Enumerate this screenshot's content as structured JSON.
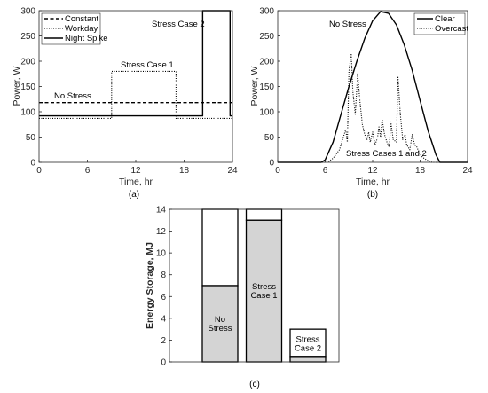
{
  "chart_data": [
    {
      "type": "line",
      "panel_caption": "(a)",
      "xlabel": "Time, hr",
      "ylabel": "Power, W",
      "xlim": [
        0,
        24
      ],
      "ylim": [
        0,
        300
      ],
      "xticks": [
        "0",
        "6",
        "12",
        "18",
        "24"
      ],
      "yticks": [
        "0",
        "50",
        "100",
        "150",
        "200",
        "250",
        "300"
      ],
      "legend": {
        "position": "top-left",
        "entries": [
          "Constant",
          "Workday",
          "Night Spike"
        ]
      },
      "annotations": [
        "Stress Case 2",
        "Stress Case 1",
        "No Stress"
      ],
      "series": [
        {
          "name": "Constant",
          "style": "dashed",
          "x": [
            0,
            24
          ],
          "y": [
            118,
            118
          ]
        },
        {
          "name": "Workday",
          "style": "dotted",
          "x": [
            0,
            9,
            9,
            17,
            17,
            24
          ],
          "y": [
            87,
            87,
            180,
            180,
            87,
            87
          ]
        },
        {
          "name": "Night Spike",
          "style": "solid",
          "x": [
            0,
            20.3,
            20.3,
            23.7,
            23.7,
            24
          ],
          "y": [
            92,
            92,
            300,
            300,
            92,
            92
          ]
        }
      ]
    },
    {
      "type": "line",
      "panel_caption": "(b)",
      "xlabel": "Time, hr",
      "ylabel": "Power, W",
      "xlim": [
        0,
        24
      ],
      "ylim": [
        0,
        300
      ],
      "xticks": [
        "0",
        "6",
        "12",
        "18",
        "24"
      ],
      "yticks": [
        "0",
        "50",
        "100",
        "150",
        "200",
        "250",
        "300"
      ],
      "legend": {
        "position": "top-right",
        "entries": [
          "Clear",
          "Overcast"
        ]
      },
      "annotations": [
        "No Stress",
        "Stress Cases 1 and 2"
      ],
      "series": [
        {
          "name": "Clear",
          "style": "solid",
          "x": [
            0,
            5.5,
            6,
            7,
            8,
            9,
            10,
            11,
            12,
            13,
            14,
            15,
            16,
            17,
            18,
            19,
            20,
            20.5,
            21,
            24
          ],
          "y": [
            0,
            0,
            5,
            40,
            95,
            150,
            200,
            245,
            280,
            298,
            295,
            272,
            232,
            182,
            122,
            63,
            15,
            0,
            0,
            0
          ]
        },
        {
          "name": "Overcast",
          "style": "dotted",
          "x": [
            0,
            6.3,
            7,
            7.8,
            8.2,
            8.6,
            8.8,
            9.0,
            9.3,
            9.5,
            9.8,
            10.1,
            10.4,
            10.7,
            11.0,
            11.3,
            11.5,
            11.7,
            12.0,
            12.3,
            12.6,
            12.8,
            13.0,
            13.2,
            13.5,
            13.8,
            14.1,
            14.3,
            14.6,
            15.0,
            15.2,
            15.5,
            15.8,
            16.1,
            16.3,
            16.7,
            17.0,
            17.3,
            17.6,
            17.9,
            18.3,
            18.8,
            19.5,
            24
          ],
          "y": [
            0,
            0,
            8,
            25,
            45,
            65,
            40,
            180,
            215,
            140,
            95,
            175,
            120,
            75,
            55,
            45,
            60,
            40,
            60,
            35,
            48,
            70,
            50,
            85,
            55,
            40,
            30,
            80,
            45,
            40,
            170,
            95,
            45,
            55,
            35,
            25,
            55,
            35,
            30,
            18,
            10,
            5,
            0,
            0
          ]
        }
      ]
    },
    {
      "type": "bar",
      "panel_caption": "(c)",
      "ylabel": "Energy Storage, MJ",
      "ylim": [
        0,
        14
      ],
      "yticks": [
        "0",
        "2",
        "4",
        "6",
        "8",
        "10",
        "12",
        "14"
      ],
      "categories": [
        "No Stress",
        "Stress Case 1",
        "Stress Case 2"
      ],
      "bar_labels": [
        [
          "No",
          "Stress"
        ],
        [
          "Stress",
          "Case 1"
        ],
        [
          "Stress",
          "Case 2"
        ]
      ],
      "lower_values": [
        7,
        13,
        0.5
      ],
      "total_values": [
        14,
        14,
        3
      ]
    }
  ],
  "colors": {
    "ink": "#000000",
    "axis": "#262626",
    "bar_fill": "#d4d4d4",
    "bar_top": "#ffffff"
  }
}
